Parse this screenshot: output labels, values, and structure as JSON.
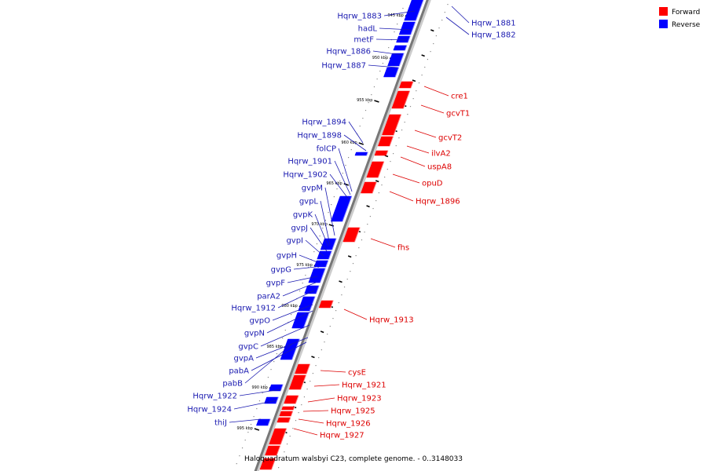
{
  "colors": {
    "forward": "#ff0000",
    "reverse": "#0000ff",
    "axis": "#777777",
    "forward_label": "#dd0000",
    "reverse_label": "#1a1ab0"
  },
  "legend": {
    "forward": "Forward",
    "reverse": "Reverse"
  },
  "caption": "Haloquadratum walsbyi C23, complete genome. - 0..3148033",
  "ticks": [
    "945 kbp",
    "950 kbp",
    "955 kbp",
    "960 kbp",
    "965 kbp",
    "970 kbp",
    "975 kbp",
    "980 kbp",
    "985 kbp",
    "990 kbp",
    "995 kbp"
  ],
  "forward_genes": [
    "cre1",
    "gcvT1",
    "gcvT2",
    "ilvA2",
    "uspA8",
    "opuD",
    "Hqrw_1896",
    "fhs",
    "Hqrw_1913",
    "cysE",
    "Hqrw_1921",
    "Hqrw_1923",
    "Hqrw_1925",
    "Hqrw_1926",
    "Hqrw_1927"
  ],
  "reverse_genes_right": [
    "Hqrw_1881",
    "Hqrw_1882"
  ],
  "reverse_genes_left": [
    "Hqrw_1883",
    "hadL",
    "metF",
    "Hqrw_1886",
    "Hqrw_1887",
    "Hqrw_1894",
    "Hqrw_1898",
    "folCP",
    "Hqrw_1901",
    "Hqrw_1902",
    "gvpM",
    "gvpL",
    "gvpK",
    "gvpJ",
    "gvpI",
    "gvpH",
    "gvpG",
    "gvpF",
    "parA2",
    "Hqrw_1912",
    "gvpO",
    "gvpN",
    "gvpC",
    "gvpA",
    "pabA",
    "pabB",
    "Hqrw_1922",
    "Hqrw_1924",
    "thiJ"
  ]
}
